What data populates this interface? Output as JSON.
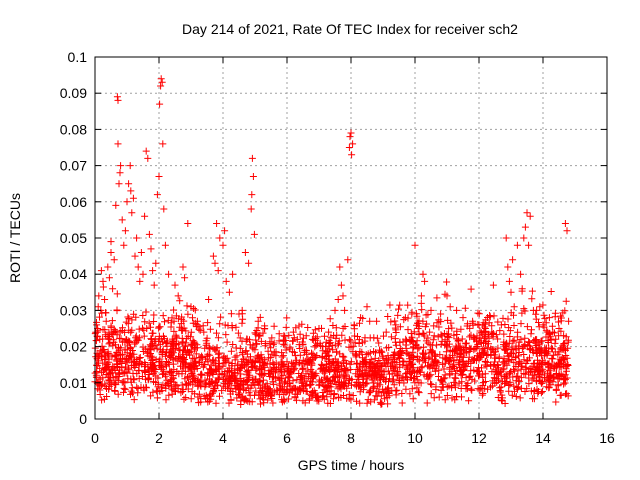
{
  "chart_data": {
    "type": "scatter",
    "title": "Day 214 of 2021, Rate Of TEC Index for receiver sch2",
    "xlabel": "GPS time / hours",
    "ylabel": "ROTI / TECUs",
    "xlim": [
      0,
      16
    ],
    "ylim": [
      0,
      0.1
    ],
    "x_ticks": [
      "0",
      "2",
      "4",
      "6",
      "8",
      "10",
      "12",
      "14",
      "16"
    ],
    "y_ticks": [
      "0",
      "0.01",
      "0.02",
      "0.03",
      "0.04",
      "0.05",
      "0.06",
      "0.07",
      "0.08",
      "0.09",
      "0.1"
    ],
    "grid": true,
    "marker": "+",
    "color": "#ff0000",
    "points": [
      [
        0.05,
        0.026
      ],
      [
        0.08,
        0.025
      ],
      [
        0.1,
        0.031
      ],
      [
        0.12,
        0.034
      ],
      [
        0.15,
        0.022
      ],
      [
        0.18,
        0.03
      ],
      [
        0.2,
        0.041
      ],
      [
        0.25,
        0.038
      ],
      [
        0.3,
        0.033
      ],
      [
        0.35,
        0.027
      ],
      [
        0.4,
        0.042
      ],
      [
        0.45,
        0.039
      ],
      [
        0.5,
        0.046
      ],
      [
        0.5,
        0.049
      ],
      [
        0.55,
        0.036
      ],
      [
        0.6,
        0.044
      ],
      [
        0.65,
        0.059
      ],
      [
        0.7,
        0.089
      ],
      [
        0.72,
        0.088
      ],
      [
        0.72,
        0.076
      ],
      [
        0.75,
        0.065
      ],
      [
        0.78,
        0.068
      ],
      [
        0.8,
        0.07
      ],
      [
        0.85,
        0.055
      ],
      [
        0.9,
        0.048
      ],
      [
        0.95,
        0.052
      ],
      [
        1.0,
        0.06
      ],
      [
        1.05,
        0.065
      ],
      [
        1.1,
        0.07
      ],
      [
        1.12,
        0.063
      ],
      [
        1.15,
        0.057
      ],
      [
        1.2,
        0.061
      ],
      [
        1.25,
        0.045
      ],
      [
        1.3,
        0.05
      ],
      [
        1.35,
        0.042
      ],
      [
        1.4,
        0.038
      ],
      [
        1.45,
        0.046
      ],
      [
        1.5,
        0.04
      ],
      [
        1.55,
        0.056
      ],
      [
        1.6,
        0.074
      ],
      [
        1.65,
        0.072
      ],
      [
        1.7,
        0.051
      ],
      [
        1.75,
        0.047
      ],
      [
        1.8,
        0.041
      ],
      [
        1.85,
        0.037
      ],
      [
        1.9,
        0.043
      ],
      [
        1.95,
        0.062
      ],
      [
        2.0,
        0.067
      ],
      [
        2.02,
        0.087
      ],
      [
        2.05,
        0.092
      ],
      [
        2.07,
        0.094
      ],
      [
        2.1,
        0.093
      ],
      [
        2.12,
        0.076
      ],
      [
        2.15,
        0.058
      ],
      [
        2.2,
        0.048
      ],
      [
        2.3,
        0.04
      ],
      [
        2.5,
        0.037
      ],
      [
        2.6,
        0.034
      ],
      [
        2.75,
        0.042
      ],
      [
        2.8,
        0.039
      ],
      [
        2.9,
        0.054
      ],
      [
        3.0,
        0.031
      ],
      [
        3.2,
        0.027
      ],
      [
        3.4,
        0.024
      ],
      [
        3.55,
        0.033
      ],
      [
        3.7,
        0.045
      ],
      [
        3.75,
        0.043
      ],
      [
        3.8,
        0.054
      ],
      [
        3.85,
        0.041
      ],
      [
        3.9,
        0.05
      ],
      [
        4.0,
        0.048
      ],
      [
        4.05,
        0.052
      ],
      [
        4.1,
        0.038
      ],
      [
        4.2,
        0.035
      ],
      [
        4.3,
        0.04
      ],
      [
        4.5,
        0.029
      ],
      [
        4.6,
        0.03
      ],
      [
        4.7,
        0.046
      ],
      [
        4.8,
        0.043
      ],
      [
        4.88,
        0.058
      ],
      [
        4.9,
        0.062
      ],
      [
        4.92,
        0.072
      ],
      [
        4.95,
        0.067
      ],
      [
        4.98,
        0.051
      ],
      [
        5.1,
        0.027
      ],
      [
        5.3,
        0.025
      ],
      [
        5.6,
        0.021
      ],
      [
        5.9,
        0.023
      ],
      [
        6.2,
        0.024
      ],
      [
        6.6,
        0.023
      ],
      [
        7.0,
        0.025
      ],
      [
        7.3,
        0.024
      ],
      [
        7.5,
        0.03
      ],
      [
        7.6,
        0.033
      ],
      [
        7.65,
        0.042
      ],
      [
        7.7,
        0.037
      ],
      [
        7.75,
        0.034
      ],
      [
        7.8,
        0.03
      ],
      [
        7.9,
        0.044
      ],
      [
        7.95,
        0.075
      ],
      [
        7.97,
        0.078
      ],
      [
        8.0,
        0.079
      ],
      [
        8.02,
        0.073
      ],
      [
        8.05,
        0.076
      ],
      [
        8.1,
        0.026
      ],
      [
        8.3,
        0.028
      ],
      [
        8.5,
        0.031
      ],
      [
        8.8,
        0.027
      ],
      [
        9.1,
        0.024
      ],
      [
        9.4,
        0.026
      ],
      [
        9.7,
        0.028
      ],
      [
        9.9,
        0.029
      ],
      [
        10.0,
        0.048
      ],
      [
        10.1,
        0.025
      ],
      [
        10.2,
        0.034
      ],
      [
        10.25,
        0.04
      ],
      [
        10.3,
        0.038
      ],
      [
        10.5,
        0.03
      ],
      [
        10.8,
        0.029
      ],
      [
        11.0,
        0.034
      ],
      [
        11.1,
        0.031
      ],
      [
        11.3,
        0.03
      ],
      [
        11.5,
        0.028
      ],
      [
        11.8,
        0.027
      ],
      [
        12.0,
        0.026
      ],
      [
        12.2,
        0.025
      ],
      [
        12.4,
        0.024
      ],
      [
        12.45,
        0.037
      ],
      [
        12.7,
        0.026
      ],
      [
        12.85,
        0.05
      ],
      [
        12.9,
        0.042
      ],
      [
        12.95,
        0.038
      ],
      [
        13.0,
        0.035
      ],
      [
        13.05,
        0.044
      ],
      [
        13.1,
        0.031
      ],
      [
        13.2,
        0.048
      ],
      [
        13.3,
        0.04
      ],
      [
        13.35,
        0.036
      ],
      [
        13.4,
        0.05
      ],
      [
        13.45,
        0.053
      ],
      [
        13.5,
        0.057
      ],
      [
        13.55,
        0.048
      ],
      [
        13.6,
        0.056
      ],
      [
        13.7,
        0.03
      ],
      [
        13.8,
        0.03
      ],
      [
        13.9,
        0.031
      ],
      [
        14.0,
        0.026
      ],
      [
        14.2,
        0.028
      ],
      [
        14.5,
        0.025
      ],
      [
        14.7,
        0.054
      ],
      [
        14.75,
        0.052
      ],
      [
        14.8,
        0.027
      ]
    ]
  }
}
